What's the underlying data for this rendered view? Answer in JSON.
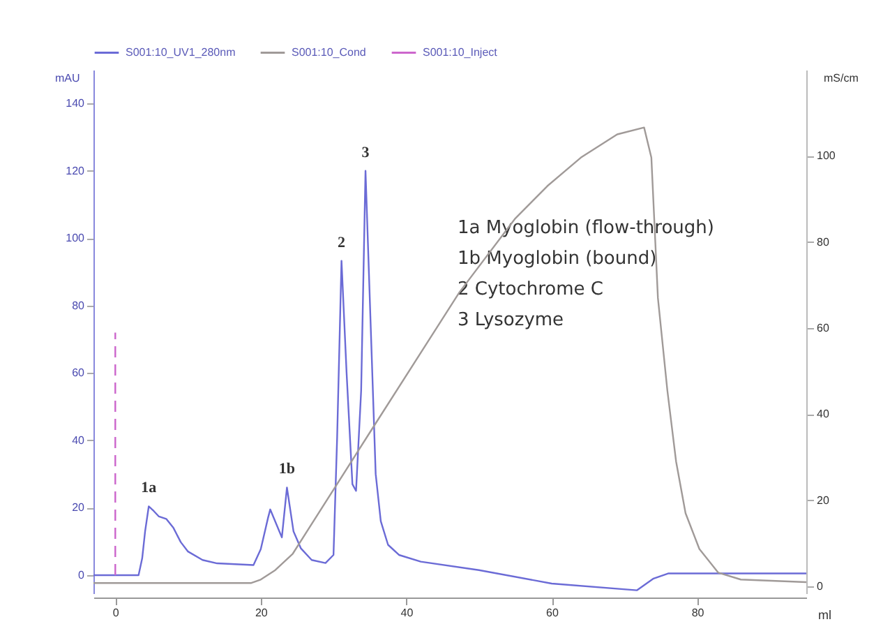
{
  "chart_data": {
    "type": "line",
    "xlabel": "ml",
    "ylabel": "mAU",
    "y2label": "mS/cm",
    "xlim": [
      -3,
      95
    ],
    "xticks": [
      0,
      20,
      40,
      60,
      80
    ],
    "ylim": [
      -5.4,
      150
    ],
    "yticks": [
      0,
      20,
      40,
      60,
      80,
      100,
      120,
      140
    ],
    "y2lim": [
      -1.6,
      120
    ],
    "y2ticks": [
      0,
      20,
      40,
      60,
      80,
      100
    ],
    "legend": "top",
    "grid": false,
    "marker": "none",
    "series": [
      {
        "name": "S001:10_UV1_280nm",
        "color": "#6b6bd6",
        "line_style": "solid",
        "x": [
          -3,
          3.2,
          3.7,
          4.1,
          4.6,
          5.3,
          6,
          7,
          8,
          9,
          10,
          12,
          14,
          17,
          19,
          20,
          21,
          21.3,
          22.9,
          23.6,
          24.5,
          25.5,
          27,
          28.9,
          30,
          30.5,
          31.1,
          31.8,
          32.6,
          33.1,
          33.8,
          34.4,
          35.2,
          35.8,
          36.5,
          37.5,
          39,
          42,
          50,
          60,
          71.7,
          74,
          76,
          85,
          95
        ],
        "values": [
          0,
          0,
          5,
          13,
          20.4,
          19,
          17.4,
          16.7,
          14,
          9.8,
          7,
          4.5,
          3.5,
          3.2,
          3,
          7.7,
          17,
          19.5,
          11.2,
          26,
          13,
          8,
          4.5,
          3.6,
          6,
          40.9,
          93.3,
          60,
          27,
          25,
          54.7,
          120,
          68.5,
          30,
          16,
          9,
          6,
          4,
          1.5,
          -2.5,
          -4.5,
          -1,
          0.5,
          0.5,
          0.5
        ]
      },
      {
        "name": "S001:10_Cond",
        "color": "#a09a98",
        "line_style": "solid",
        "axis": "y2",
        "x": [
          -3,
          18.7,
          20,
          22,
          24.4,
          35.2,
          47.3,
          55,
          59.4,
          64,
          69,
          72.7,
          73.7,
          74.6,
          75.9,
          77.1,
          78.4,
          80.3,
          82.9,
          86,
          95
        ],
        "values": [
          0.8,
          0.8,
          1.6,
          3.8,
          7.6,
          36.3,
          68.3,
          85.5,
          93,
          99.6,
          105,
          106.6,
          99.6,
          67,
          45.5,
          29,
          17,
          8.7,
          3.2,
          1.6,
          1
        ]
      },
      {
        "name": "S001:10_Inject",
        "color": "#cc66cc",
        "line_style": "dashed",
        "x": [
          0,
          0
        ],
        "values": [
          0,
          72
        ]
      }
    ],
    "annotations": [
      {
        "text": "1a",
        "x": 4.6,
        "y": 20.4
      },
      {
        "text": "1b",
        "x": 23.6,
        "y": 26
      },
      {
        "text": "2",
        "x": 31.1,
        "y": 93.3
      },
      {
        "text": "3",
        "x": 34.4,
        "y": 120
      },
      "1a   Myoglobin (flow-through)",
      "1b   Myoglobin (bound)",
      "2     Cytochrome C",
      "3     Lysozyme"
    ]
  }
}
